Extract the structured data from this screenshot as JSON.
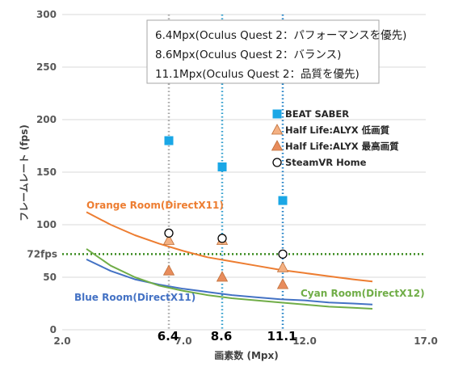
{
  "chart_data": {
    "type": "scatter",
    "xlabel": "画素数 (Mpx)",
    "ylabel": "フレームレート (fps)",
    "xlim": [
      2.0,
      17.0
    ],
    "ylim": [
      0,
      300
    ],
    "x_ticks": [
      "2.0",
      "7.0",
      "12.0",
      "17.0"
    ],
    "y_ticks": [
      "0",
      "50",
      "100",
      "150",
      "200",
      "250",
      "300"
    ],
    "grid": "horizontal",
    "highlight_x": [
      {
        "x": 6.4,
        "label": "6.4",
        "color": "#a6a6a6"
      },
      {
        "x": 8.6,
        "label": "8.6",
        "color": "#2e9ccc"
      },
      {
        "x": 11.1,
        "label": "11.1",
        "color": "#1f7fc4"
      }
    ],
    "reference_line": {
      "y": 72,
      "label": "72fps",
      "color": "#3a8a1e"
    },
    "info_box": [
      "6.4Mpx(Oculus Quest 2：パフォーマンスを優先)",
      "8.6Mpx(Oculus Quest 2：バランス)",
      "11.1Mpx(Oculus Quest 2：品質を優先)"
    ],
    "point_series": [
      {
        "name": "BEAT SABER",
        "marker": "square",
        "color": "#1aa7e6",
        "x": [
          6.4,
          8.6,
          11.1
        ],
        "y": [
          180,
          155,
          123
        ]
      },
      {
        "name": "Half Life:ALYX 低画質",
        "marker": "triangle",
        "color": "#f4b183",
        "x": [
          6.4,
          8.6,
          11.1
        ],
        "y": [
          85,
          85,
          59
        ]
      },
      {
        "name": "Half Life:ALYX 最高画質",
        "marker": "triangle",
        "color": "#e88c5c",
        "x": [
          6.4,
          8.6,
          11.1
        ],
        "y": [
          56,
          50,
          43
        ]
      },
      {
        "name": "SteamVR Home",
        "marker": "circle",
        "color": "#ffffff",
        "x": [
          6.4,
          8.6,
          11.1
        ],
        "y": [
          92,
          87,
          72
        ]
      }
    ],
    "curve_series": [
      {
        "name": "Orange Room(DirectX11)",
        "color": "#ed7d31",
        "x": [
          3.0,
          4.0,
          5.0,
          6.0,
          7.0,
          8.0,
          9.0,
          10.0,
          11.0,
          12.0,
          13.0,
          14.0,
          14.8
        ],
        "y": [
          112,
          100,
          90,
          82,
          75,
          69,
          65,
          61,
          57,
          54,
          51,
          48,
          46
        ]
      },
      {
        "name": "Blue Room(DirectX11)",
        "color": "#4472c4",
        "x": [
          3.0,
          4.0,
          5.0,
          6.0,
          7.0,
          8.0,
          9.0,
          10.0,
          11.0,
          12.0,
          13.0,
          14.0,
          14.8
        ],
        "y": [
          67,
          56,
          48,
          43,
          39,
          36,
          33,
          31,
          29,
          28,
          26,
          25,
          24
        ]
      },
      {
        "name": "Cyan Room(DirectX12)",
        "color": "#70ad47",
        "x": [
          3.0,
          4.0,
          5.0,
          6.0,
          7.0,
          8.0,
          9.0,
          10.0,
          11.0,
          12.0,
          13.0,
          14.0,
          14.8
        ],
        "y": [
          77,
          61,
          50,
          42,
          37,
          33,
          30,
          28,
          26,
          24,
          22,
          21,
          20
        ]
      }
    ]
  }
}
